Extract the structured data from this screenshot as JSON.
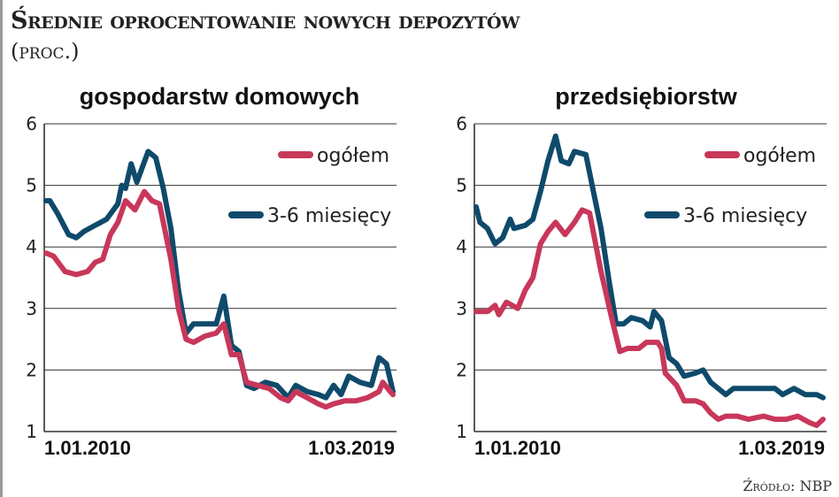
{
  "title": "Średnie oprocentowanie nowych depozytów",
  "unit": "(proc.)",
  "source": "Źródło: NBP",
  "colors": {
    "ogolem": "#c8375a",
    "mies": "#0f4a6b"
  },
  "chart_data": [
    {
      "type": "line",
      "title": "gospodarstw domowych",
      "ylim": [
        1,
        6
      ],
      "yticks": [
        "1",
        "2",
        "3",
        "4",
        "5",
        "6"
      ],
      "xlim": [
        2010.0,
        2019.17
      ],
      "xtick_labels": [
        "1.01.2010",
        "1.03.2019"
      ],
      "legend": "top-right",
      "series": [
        {
          "name": "ogółem",
          "x": [
            2010.0,
            2010.2,
            2010.5,
            2010.8,
            2011.1,
            2011.3,
            2011.5,
            2011.7,
            2011.9,
            2012.1,
            2012.35,
            2012.6,
            2012.8,
            2013.0,
            2013.3,
            2013.5,
            2013.7,
            2013.9,
            2014.2,
            2014.5,
            2014.7,
            2014.9,
            2015.1,
            2015.3,
            2015.6,
            2015.9,
            2016.2,
            2016.4,
            2016.6,
            2016.9,
            2017.2,
            2017.4,
            2017.6,
            2017.9,
            2018.2,
            2018.5,
            2018.8,
            2018.9,
            2019.1,
            2019.17
          ],
          "y": [
            3.9,
            3.85,
            3.6,
            3.55,
            3.6,
            3.75,
            3.8,
            4.2,
            4.4,
            4.75,
            4.6,
            4.9,
            4.75,
            4.7,
            3.8,
            3.0,
            2.5,
            2.45,
            2.55,
            2.6,
            2.75,
            2.25,
            2.25,
            1.8,
            1.75,
            1.7,
            1.55,
            1.5,
            1.65,
            1.55,
            1.45,
            1.4,
            1.45,
            1.5,
            1.5,
            1.55,
            1.65,
            1.8,
            1.65,
            1.6
          ]
        },
        {
          "name": "3-6 miesięcy",
          "x": [
            2010.0,
            2010.1,
            2010.3,
            2010.6,
            2010.8,
            2011.0,
            2011.3,
            2011.6,
            2011.9,
            2012.0,
            2012.1,
            2012.25,
            2012.4,
            2012.55,
            2012.7,
            2012.9,
            2013.1,
            2013.3,
            2013.5,
            2013.7,
            2013.9,
            2014.2,
            2014.5,
            2014.7,
            2014.9,
            2015.1,
            2015.3,
            2015.5,
            2015.8,
            2016.1,
            2016.4,
            2016.6,
            2016.9,
            2017.2,
            2017.4,
            2017.6,
            2017.8,
            2018.0,
            2018.3,
            2018.6,
            2018.8,
            2019.0,
            2019.17
          ],
          "y": [
            4.75,
            4.75,
            4.55,
            4.2,
            4.15,
            4.25,
            4.35,
            4.45,
            4.7,
            5.0,
            4.95,
            5.35,
            5.05,
            5.3,
            5.55,
            5.45,
            4.95,
            4.3,
            3.3,
            2.6,
            2.75,
            2.75,
            2.75,
            3.2,
            2.4,
            2.3,
            1.75,
            1.7,
            1.8,
            1.75,
            1.55,
            1.75,
            1.65,
            1.6,
            1.55,
            1.75,
            1.6,
            1.9,
            1.8,
            1.75,
            2.2,
            2.1,
            1.65
          ]
        }
      ]
    },
    {
      "type": "line",
      "title": "przedsiębiorstw",
      "ylim": [
        1,
        6
      ],
      "yticks": [
        "1",
        "2",
        "3",
        "4",
        "5",
        "6"
      ],
      "xlim": [
        2010.0,
        2019.17
      ],
      "xtick_labels": [
        "1.01.2010",
        "1.03.2019"
      ],
      "legend": "top-right",
      "series": [
        {
          "name": "ogółem",
          "x": [
            2010.0,
            2010.3,
            2010.5,
            2010.6,
            2010.8,
            2011.1,
            2011.3,
            2011.5,
            2011.7,
            2011.9,
            2012.1,
            2012.35,
            2012.6,
            2012.8,
            2013.0,
            2013.3,
            2013.6,
            2013.8,
            2014.0,
            2014.3,
            2014.5,
            2014.8,
            2014.9,
            2015.0,
            2015.3,
            2015.5,
            2015.8,
            2016.0,
            2016.2,
            2016.4,
            2016.6,
            2016.9,
            2017.2,
            2017.6,
            2017.9,
            2018.2,
            2018.5,
            2018.8,
            2019.0,
            2019.17
          ],
          "y": [
            2.95,
            2.95,
            3.05,
            2.9,
            3.1,
            3.0,
            3.3,
            3.5,
            4.05,
            4.25,
            4.4,
            4.2,
            4.4,
            4.6,
            4.55,
            3.6,
            2.8,
            2.3,
            2.35,
            2.35,
            2.45,
            2.45,
            2.35,
            1.95,
            1.75,
            1.5,
            1.5,
            1.45,
            1.3,
            1.2,
            1.25,
            1.25,
            1.2,
            1.25,
            1.2,
            1.2,
            1.25,
            1.15,
            1.1,
            1.2
          ]
        },
        {
          "name": "3-6 miesięcy",
          "x": [
            2010.0,
            2010.1,
            2010.3,
            2010.5,
            2010.7,
            2010.9,
            2011.0,
            2011.3,
            2011.5,
            2011.7,
            2011.9,
            2012.1,
            2012.25,
            2012.45,
            2012.6,
            2012.9,
            2013.1,
            2013.3,
            2013.5,
            2013.7,
            2013.9,
            2014.1,
            2014.4,
            2014.6,
            2014.7,
            2014.9,
            2015.1,
            2015.3,
            2015.5,
            2015.8,
            2016.0,
            2016.2,
            2016.4,
            2016.6,
            2016.8,
            2017.2,
            2017.6,
            2017.9,
            2018.1,
            2018.4,
            2018.7,
            2019.0,
            2019.17
          ],
          "y": [
            4.65,
            4.4,
            4.3,
            4.05,
            4.15,
            4.45,
            4.3,
            4.35,
            4.45,
            4.9,
            5.4,
            5.8,
            5.4,
            5.35,
            5.55,
            5.5,
            4.9,
            4.3,
            3.5,
            2.75,
            2.75,
            2.85,
            2.8,
            2.7,
            2.95,
            2.8,
            2.2,
            2.1,
            1.9,
            1.95,
            2.0,
            1.8,
            1.7,
            1.6,
            1.7,
            1.7,
            1.7,
            1.7,
            1.6,
            1.7,
            1.6,
            1.6,
            1.55
          ]
        }
      ]
    }
  ]
}
